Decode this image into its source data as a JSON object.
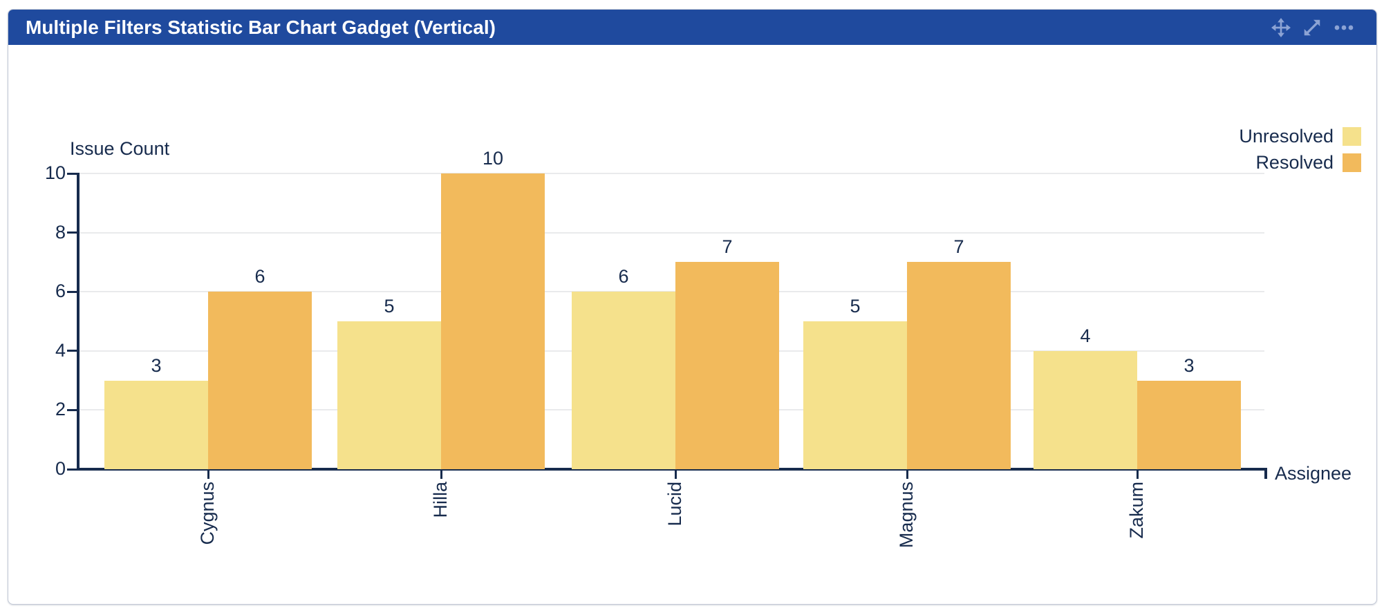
{
  "header": {
    "title": "Multiple Filters Statistic Bar Chart Gadget (Vertical)",
    "icons": [
      {
        "name": "move-icon"
      },
      {
        "name": "expand-icon"
      },
      {
        "name": "more-icon"
      }
    ]
  },
  "colors": {
    "header_bg": "#1f4a9e",
    "header_text": "#ffffff",
    "header_icon": "#8ca3d4",
    "text_navy": "#172b4d",
    "axis": "#172b4d",
    "gridline": "#e9eaec",
    "card_border": "#c2c8d6",
    "unresolved": "#f5e18c",
    "resolved": "#f2ba5c"
  },
  "chart_data": {
    "type": "bar",
    "title": "",
    "categories": [
      "Cygnus",
      "Hilla",
      "Lucid",
      "Magnus",
      "Zakum"
    ],
    "series": [
      {
        "name": "Unresolved",
        "color": "#f5e18c",
        "values": [
          3,
          5,
          6,
          5,
          4
        ]
      },
      {
        "name": "Resolved",
        "color": "#f2ba5c",
        "values": [
          6,
          10,
          7,
          7,
          3
        ]
      }
    ],
    "xlabel": "Assignee",
    "ylabel": "Issue Count",
    "ylim": [
      0,
      10
    ],
    "yticks": [
      0,
      2,
      4,
      6,
      8,
      10
    ],
    "grid": true,
    "legend_position": "top-right",
    "bar_value_labels": true
  }
}
